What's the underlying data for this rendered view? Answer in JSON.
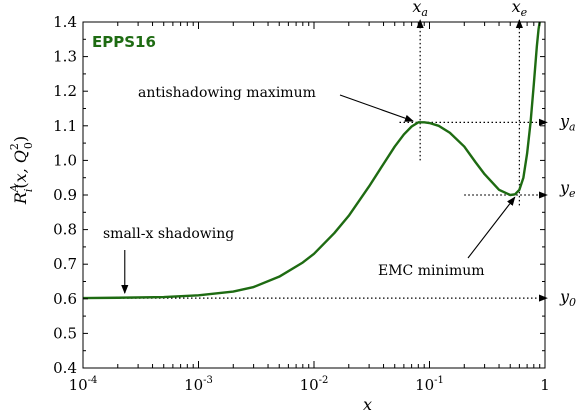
{
  "chart_data": {
    "type": "line",
    "title": "EPPS16",
    "title_color": "#1e6b12",
    "xlabel": "x",
    "ylabel": "R_i^A(x, Q_0^2)",
    "xscale": "log",
    "xlim": [
      0.0001,
      1
    ],
    "ylim": [
      0.4,
      1.4
    ],
    "x_ticks": [
      {
        "value": 0.0001,
        "base": "10",
        "exp": "-4"
      },
      {
        "value": 0.001,
        "base": "10",
        "exp": "-3"
      },
      {
        "value": 0.01,
        "base": "10",
        "exp": "-2"
      },
      {
        "value": 0.1,
        "base": "10",
        "exp": "-1"
      },
      {
        "value": 1,
        "base": "1",
        "exp": ""
      }
    ],
    "y_ticks": [
      "0.4",
      "0.5",
      "0.6",
      "0.7",
      "0.8",
      "0.9",
      "1.0",
      "1.1",
      "1.2",
      "1.3",
      "1.4"
    ],
    "series": [
      {
        "color": "#1e6b12",
        "x": [
          0.0001,
          0.0002,
          0.0005,
          0.001,
          0.002,
          0.003,
          0.005,
          0.008,
          0.01,
          0.015,
          0.02,
          0.03,
          0.04,
          0.05,
          0.06,
          0.07,
          0.08,
          0.09,
          0.1,
          0.12,
          0.15,
          0.2,
          0.25,
          0.3,
          0.4,
          0.5,
          0.55,
          0.6,
          0.65,
          0.7,
          0.75,
          0.8,
          0.85,
          0.88,
          0.9
        ],
        "y": [
          0.602,
          0.603,
          0.605,
          0.61,
          0.621,
          0.634,
          0.664,
          0.705,
          0.73,
          0.79,
          0.84,
          0.925,
          0.99,
          1.04,
          1.075,
          1.098,
          1.11,
          1.11,
          1.108,
          1.1,
          1.08,
          1.04,
          0.995,
          0.96,
          0.915,
          0.9,
          0.902,
          0.915,
          0.95,
          1.02,
          1.11,
          1.22,
          1.33,
          1.38,
          1.4
        ]
      }
    ],
    "reference_lines": {
      "x_a": 0.083,
      "x_e": 0.6,
      "y_a": 1.11,
      "y_e": 0.9,
      "y_0": 0.602
    },
    "labels": {
      "x_a": "x_a",
      "x_e": "x_e",
      "y_a": "y_a",
      "y_e": "y_e",
      "y_0": "y_0"
    },
    "annotations": [
      {
        "text": "antishadowing maximum",
        "target_x": 0.075,
        "target_y": 1.108
      },
      {
        "text": "small-x shadowing",
        "target_x": 0.00023,
        "target_y": 0.605
      },
      {
        "text": "EMC minimum",
        "target_x": 0.57,
        "target_y": 0.905
      }
    ]
  }
}
